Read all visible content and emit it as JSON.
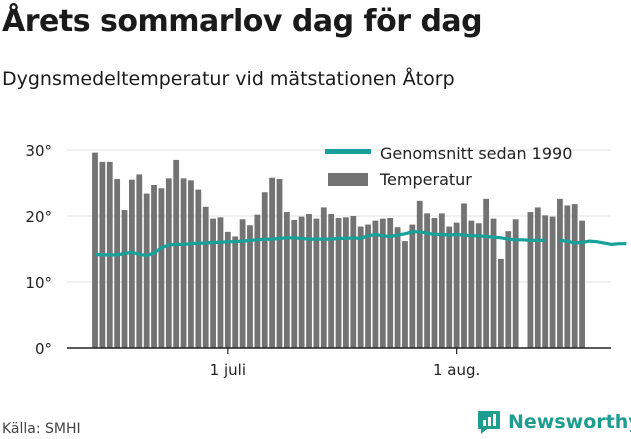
{
  "title": "Årets sommarlov dag för dag",
  "subtitle": "Dygnsmedeltemperatur vid mätstationen Åtorp",
  "source": "Källa: SMHI",
  "brand": "Newsworthy",
  "colors": {
    "bar": "#737373",
    "line": "#18a19a",
    "brand": "#1d9d8e",
    "axis": "#222222",
    "grid": "#e0e0e0"
  },
  "chart_data": {
    "type": "bar",
    "title": "Årets sommarlov dag för dag",
    "ylim": [
      0,
      30
    ],
    "yticks": [
      0,
      10,
      20,
      30
    ],
    "ytick_labels": [
      "0°",
      "10°",
      "20°",
      "30°"
    ],
    "xticks": [
      {
        "index": 18,
        "label": "1 juli"
      },
      {
        "index": 49,
        "label": "1 aug."
      }
    ],
    "legend": {
      "placement": "top-right"
    },
    "series": [
      {
        "name": "Genomsnitt sedan 1990",
        "type": "line",
        "values": [
          14.2,
          14.1,
          14.1,
          14.1,
          14.3,
          14.5,
          14.2,
          14.0,
          14.4,
          15.2,
          15.6,
          15.7,
          15.7,
          15.8,
          15.9,
          15.9,
          16.0,
          16.0,
          16.1,
          16.1,
          16.2,
          16.3,
          16.4,
          16.5,
          16.5,
          16.6,
          16.7,
          16.7,
          16.6,
          16.5,
          16.5,
          16.5,
          16.5,
          16.6,
          16.6,
          16.7,
          16.6,
          17.0,
          17.2,
          17.0,
          16.9,
          17.1,
          17.3,
          17.6,
          17.6,
          17.4,
          17.2,
          17.2,
          17.1,
          17.2,
          17.1,
          17.0,
          17.0,
          16.9,
          16.8,
          16.7,
          16.5,
          16.4,
          16.4,
          16.3,
          16.3,
          16.3,
          null,
          16.3,
          16.2,
          15.9,
          16.0,
          16.2,
          16.1,
          15.9,
          15.7,
          15.8,
          15.8
        ]
      },
      {
        "name": "Temperatur",
        "type": "bar",
        "values": [
          29.6,
          28.2,
          28.2,
          25.6,
          20.9,
          25.5,
          26.3,
          23.4,
          24.7,
          24.2,
          25.7,
          28.5,
          25.7,
          25.4,
          24.0,
          21.4,
          19.6,
          19.8,
          17.6,
          16.9,
          19.5,
          18.6,
          20.2,
          23.6,
          25.8,
          25.6,
          20.6,
          19.4,
          19.9,
          20.3,
          19.6,
          21.3,
          20.3,
          19.7,
          19.8,
          20.0,
          18.4,
          18.7,
          19.3,
          19.6,
          19.7,
          18.3,
          16.2,
          18.7,
          22.3,
          20.4,
          19.7,
          20.4,
          18.4,
          19.0,
          21.9,
          19.3,
          18.9,
          22.6,
          19.6,
          13.5,
          17.7,
          19.5,
          null,
          20.6,
          21.3,
          20.1,
          19.9,
          22.6,
          21.6,
          21.8,
          19.3
        ]
      }
    ]
  }
}
